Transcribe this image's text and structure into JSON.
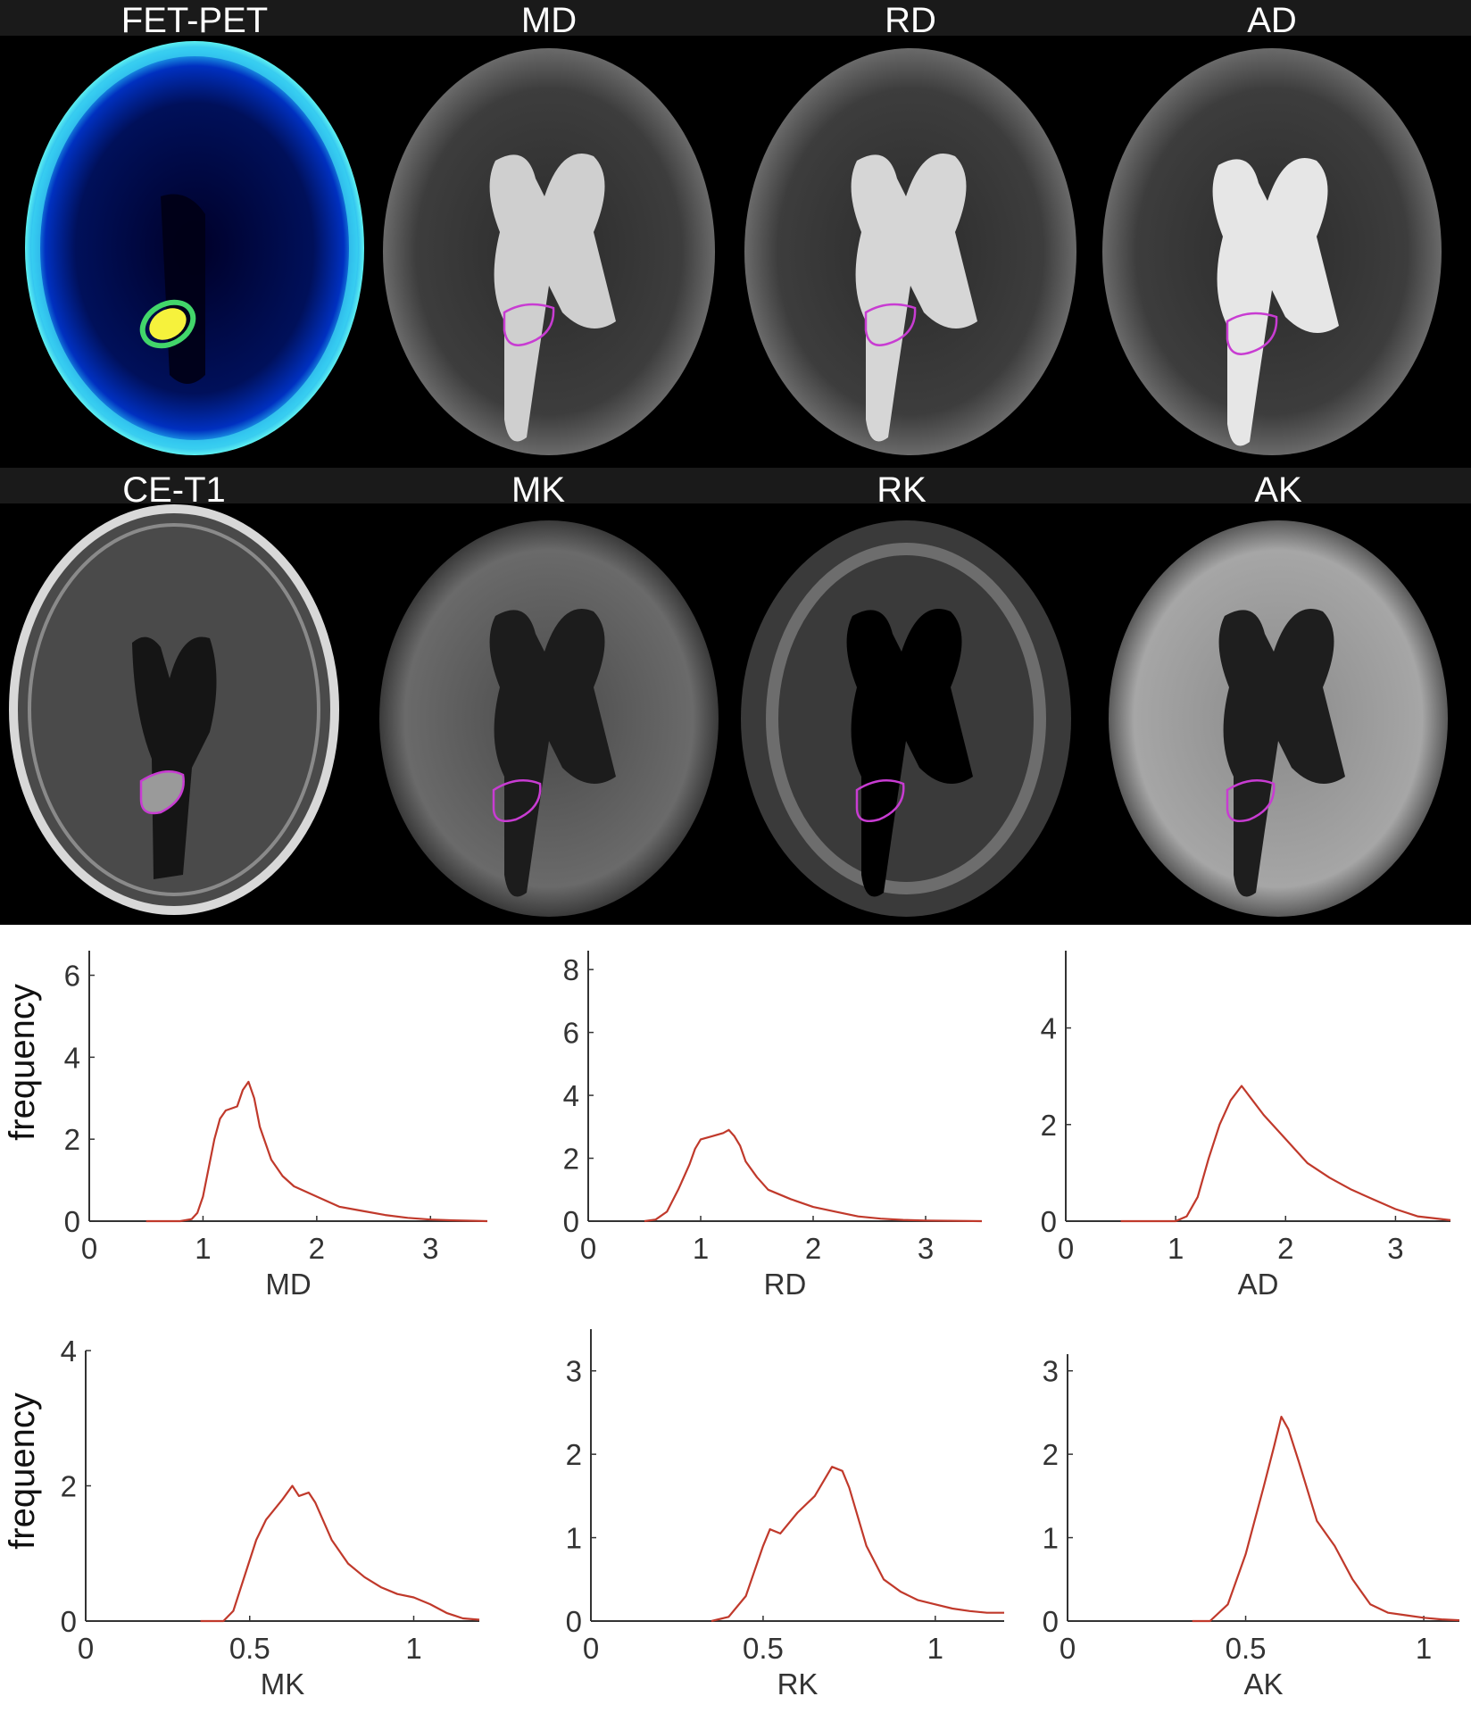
{
  "figure": {
    "image_titles": [
      "FET-PET",
      "MD",
      "RD",
      "AD",
      "CE-T1",
      "MK",
      "RK",
      "AK"
    ],
    "frequency_label": "frequency"
  },
  "chart_data": [
    {
      "type": "line",
      "xlabel": "MD",
      "ylabel": "frequency",
      "xlim": [
        0,
        3.5
      ],
      "ylim": [
        0,
        6.6
      ],
      "xticks": [
        0,
        1,
        2,
        3
      ],
      "yticks": [
        0,
        2,
        4,
        6
      ],
      "series": [
        {
          "color": "#c0392b",
          "x": [
            0.5,
            0.8,
            0.9,
            0.95,
            1.0,
            1.05,
            1.1,
            1.15,
            1.2,
            1.3,
            1.35,
            1.4,
            1.45,
            1.5,
            1.6,
            1.7,
            1.8,
            2.0,
            2.2,
            2.4,
            2.6,
            2.8,
            3.0,
            3.2,
            3.5
          ],
          "y": [
            0,
            0,
            0.05,
            0.2,
            0.6,
            1.3,
            2.0,
            2.5,
            2.7,
            2.8,
            3.2,
            3.4,
            3.0,
            2.3,
            1.5,
            1.1,
            0.85,
            0.6,
            0.35,
            0.25,
            0.15,
            0.08,
            0.04,
            0.02,
            0
          ]
        }
      ]
    },
    {
      "type": "line",
      "xlabel": "RD",
      "ylabel": "frequency",
      "xlim": [
        0,
        3.5
      ],
      "ylim": [
        0,
        8.6
      ],
      "xticks": [
        0,
        1,
        2,
        3
      ],
      "yticks": [
        0,
        2,
        4,
        6,
        8
      ],
      "series": [
        {
          "color": "#c0392b",
          "x": [
            0.5,
            0.6,
            0.7,
            0.8,
            0.9,
            0.95,
            1.0,
            1.1,
            1.2,
            1.25,
            1.3,
            1.35,
            1.4,
            1.5,
            1.6,
            1.8,
            2.0,
            2.2,
            2.4,
            2.6,
            2.8,
            3.0,
            3.5
          ],
          "y": [
            0,
            0.05,
            0.3,
            1.0,
            1.8,
            2.3,
            2.6,
            2.7,
            2.8,
            2.9,
            2.7,
            2.4,
            1.9,
            1.4,
            1.0,
            0.7,
            0.45,
            0.3,
            0.15,
            0.08,
            0.04,
            0.02,
            0
          ]
        }
      ]
    },
    {
      "type": "line",
      "xlabel": "AD",
      "ylabel": "frequency",
      "xlim": [
        0,
        3.5
      ],
      "ylim": [
        0,
        5.6
      ],
      "xticks": [
        0,
        1,
        2,
        3
      ],
      "yticks": [
        0,
        2,
        4
      ],
      "series": [
        {
          "color": "#c0392b",
          "x": [
            0.5,
            1.0,
            1.1,
            1.2,
            1.3,
            1.4,
            1.5,
            1.6,
            1.7,
            1.8,
            2.0,
            2.2,
            2.4,
            2.6,
            2.8,
            3.0,
            3.2,
            3.5
          ],
          "y": [
            0,
            0,
            0.1,
            0.5,
            1.3,
            2.0,
            2.5,
            2.8,
            2.5,
            2.2,
            1.7,
            1.2,
            0.9,
            0.65,
            0.45,
            0.25,
            0.1,
            0.02
          ]
        }
      ]
    },
    {
      "type": "line",
      "xlabel": "MK",
      "ylabel": "frequency",
      "xlim": [
        0,
        1.2
      ],
      "ylim": [
        0,
        4
      ],
      "xticks": [
        0,
        0.5,
        1
      ],
      "yticks": [
        0,
        2,
        4
      ],
      "series": [
        {
          "color": "#c0392b",
          "x": [
            0.35,
            0.42,
            0.45,
            0.48,
            0.52,
            0.55,
            0.6,
            0.63,
            0.65,
            0.68,
            0.7,
            0.75,
            0.8,
            0.85,
            0.9,
            0.95,
            1.0,
            1.05,
            1.1,
            1.15,
            1.2
          ],
          "y": [
            0,
            0,
            0.15,
            0.6,
            1.2,
            1.5,
            1.8,
            2.0,
            1.85,
            1.9,
            1.75,
            1.2,
            0.85,
            0.65,
            0.5,
            0.4,
            0.35,
            0.25,
            0.12,
            0.04,
            0.02
          ]
        }
      ]
    },
    {
      "type": "line",
      "xlabel": "RK",
      "ylabel": "frequency",
      "xlim": [
        0,
        1.2
      ],
      "ylim": [
        0,
        3.5
      ],
      "xticks": [
        0,
        0.5,
        1
      ],
      "yticks": [
        0,
        1,
        2,
        3
      ],
      "series": [
        {
          "color": "#c0392b",
          "x": [
            0.35,
            0.4,
            0.45,
            0.5,
            0.52,
            0.55,
            0.6,
            0.65,
            0.7,
            0.73,
            0.75,
            0.8,
            0.85,
            0.9,
            0.95,
            1.0,
            1.05,
            1.1,
            1.15,
            1.2
          ],
          "y": [
            0,
            0.05,
            0.3,
            0.9,
            1.1,
            1.05,
            1.3,
            1.5,
            1.85,
            1.8,
            1.6,
            0.9,
            0.5,
            0.35,
            0.25,
            0.2,
            0.15,
            0.12,
            0.1,
            0.1
          ]
        }
      ]
    },
    {
      "type": "line",
      "xlabel": "AK",
      "ylabel": "frequency",
      "xlim": [
        0,
        1.1
      ],
      "ylim": [
        0,
        3.2
      ],
      "xticks": [
        0,
        0.5,
        1
      ],
      "yticks": [
        0,
        1,
        2,
        3
      ],
      "series": [
        {
          "color": "#c0392b",
          "x": [
            0.35,
            0.4,
            0.45,
            0.5,
            0.55,
            0.58,
            0.6,
            0.62,
            0.65,
            0.7,
            0.75,
            0.8,
            0.85,
            0.9,
            0.95,
            1.0,
            1.05,
            1.1
          ],
          "y": [
            0,
            0,
            0.2,
            0.8,
            1.6,
            2.1,
            2.45,
            2.3,
            1.9,
            1.2,
            0.9,
            0.5,
            0.2,
            0.1,
            0.07,
            0.04,
            0.02,
            0.01
          ]
        }
      ]
    }
  ]
}
